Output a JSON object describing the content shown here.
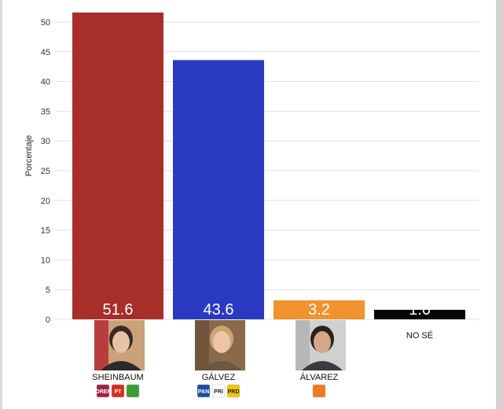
{
  "chart_data": {
    "type": "bar",
    "ylabel": "Porcentaje",
    "ylim": [
      0,
      52
    ],
    "yticks": [
      0,
      5,
      10,
      15,
      20,
      25,
      30,
      35,
      40,
      45,
      50
    ],
    "grid": true,
    "categories": [
      "SHEINBAUM",
      "GÁLVEZ",
      "ÁLVAREZ",
      "NO SÉ"
    ],
    "values": [
      51.6,
      43.6,
      3.2,
      1.6
    ],
    "value_labels": [
      "51.6",
      "43.6",
      "3.2",
      "1.6"
    ],
    "colors": [
      "#a82e2a",
      "#2a3ac0",
      "#f0922d",
      "#050505"
    ],
    "value_label_color": "#ffffff"
  },
  "candidates": [
    {
      "photo": "photo-sheinbaum",
      "parties": [
        {
          "label": "MORENA",
          "color": "#9e2241"
        },
        {
          "label": "PT",
          "color": "#d52b1e"
        },
        {
          "label": "",
          "color": "#3b9b35"
        }
      ]
    },
    {
      "photo": "photo-galvez",
      "parties": [
        {
          "label": "PAN",
          "color": "#1f4b9b"
        },
        {
          "label": "PRI",
          "color": "#ffffff"
        },
        {
          "label": "PRD",
          "color": "#f2c500"
        }
      ]
    },
    {
      "photo": "photo-alvarez",
      "parties": [
        {
          "label": "",
          "color": "#ee7b23"
        }
      ]
    },
    {
      "photo": "",
      "parties": []
    }
  ]
}
